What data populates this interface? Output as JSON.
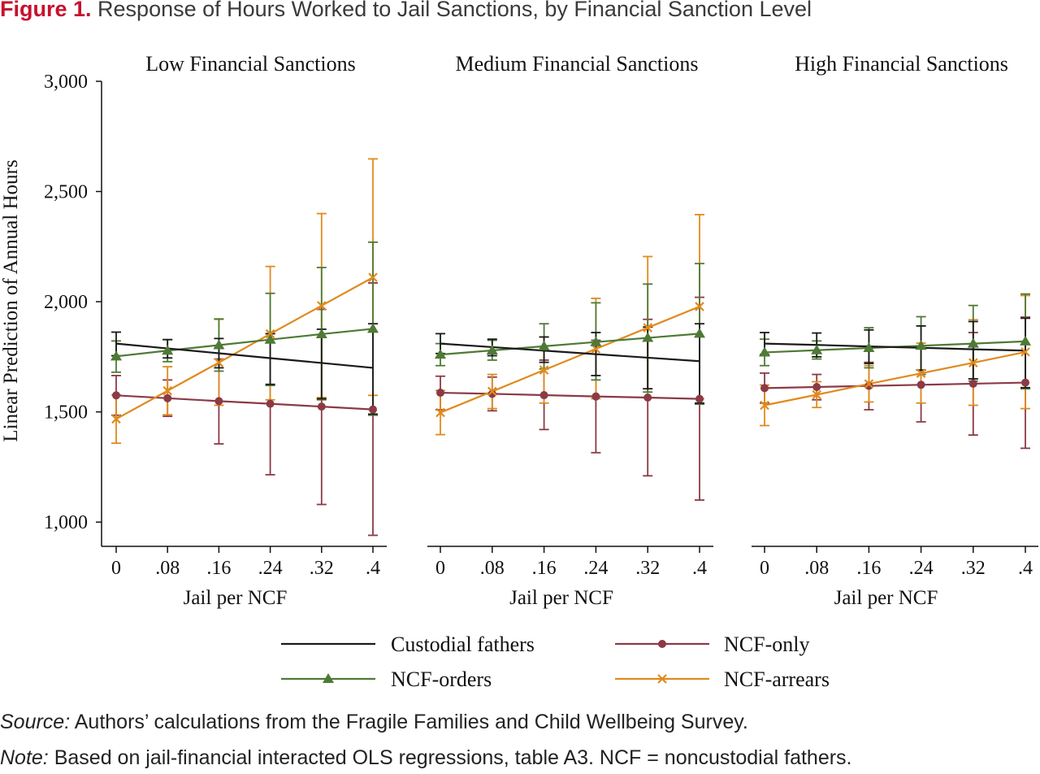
{
  "figure": {
    "label": "Figure 1.",
    "title": "Response of Hours Worked to Jail Sanctions, by Financial Sanction Level"
  },
  "source": {
    "label": "Source:",
    "text": "Authors’ calculations from the Fragile Families and Child Wellbeing Survey."
  },
  "note": {
    "label": "Note:",
    "text": "Based on jail-financial interacted OLS regressions, table A3. NCF = noncustodial fathers."
  },
  "chart_data": {
    "type": "line",
    "ylabel": "Linear Prediction of Annual Hours",
    "xlabel": "Jail per NCF",
    "x": [
      0,
      0.08,
      0.16,
      0.24,
      0.32,
      0.4
    ],
    "x_tick_labels": [
      "0",
      ".08",
      ".16",
      ".24",
      ".32",
      ".4"
    ],
    "y_ticks": [
      1000,
      1500,
      2000,
      2500,
      3000
    ],
    "y_tick_labels": [
      "1,000",
      "1,500",
      "2,000",
      "2,500",
      "3,000"
    ],
    "ylim": [
      890,
      3000
    ],
    "grid": false,
    "legend_position": "bottom",
    "colors": {
      "Custodial fathers": "#1a1a1a",
      "NCF-only": "#8b3a46",
      "NCF-orders": "#4f7a35",
      "NCF-arrears": "#e08a1e"
    },
    "series_order": [
      "Custodial fathers",
      "NCF-only",
      "NCF-orders",
      "NCF-arrears"
    ],
    "markers": {
      "Custodial fathers": "none",
      "NCF-only": "circle",
      "NCF-orders": "triangle",
      "NCF-arrears": "x"
    },
    "panels": [
      {
        "title": "Low Financial Sanctions",
        "series": [
          {
            "name": "Custodial fathers",
            "values": [
              1810,
              1788,
              1766,
              1744,
              1722,
              1700
            ],
            "lo": [
              1755,
              1745,
              1700,
              1625,
              1560,
              1490
            ],
            "hi": [
              1862,
              1828,
              1833,
              1855,
              1875,
              1900
            ]
          },
          {
            "name": "NCF-only",
            "values": [
              1575,
              1562,
              1549,
              1537,
              1524,
              1511
            ],
            "lo": [
              1485,
              1480,
              1355,
              1215,
              1080,
              940
            ],
            "hi": [
              1665,
              1645,
              1740,
              1855,
              1965,
              2085
            ]
          },
          {
            "name": "NCF-orders",
            "values": [
              1752,
              1778,
              1803,
              1828,
              1853,
              1877
            ],
            "lo": [
              1680,
              1728,
              1685,
              1620,
              1555,
              1485
            ],
            "hi": [
              1822,
              1828,
              1922,
              2038,
              2155,
              2270
            ]
          },
          {
            "name": "NCF-arrears",
            "values": [
              1468,
              1596,
              1724,
              1854,
              1982,
              2110
            ],
            "lo": [
              1358,
              1487,
              1530,
              1555,
              1565,
              1575
            ],
            "hi": [
              1577,
              1705,
              1920,
              2160,
              2400,
              2648
            ]
          }
        ]
      },
      {
        "title": "Medium Financial Sanctions",
        "series": [
          {
            "name": "Custodial fathers",
            "values": [
              1810,
              1794,
              1778,
              1762,
              1746,
              1730
            ],
            "lo": [
              1765,
              1755,
              1725,
              1665,
              1605,
              1540
            ],
            "hi": [
              1855,
              1830,
              1840,
              1860,
              1885,
              1900
            ]
          },
          {
            "name": "NCF-only",
            "values": [
              1587,
              1582,
              1576,
              1570,
              1565,
              1559
            ],
            "lo": [
              1510,
              1505,
              1420,
              1315,
              1210,
              1100
            ],
            "hi": [
              1662,
              1658,
              1735,
              1825,
              1920,
              2020
            ]
          },
          {
            "name": "NCF-orders",
            "values": [
              1760,
              1779,
              1798,
              1817,
              1836,
              1855
            ],
            "lo": [
              1710,
              1735,
              1695,
              1645,
              1590,
              1535
            ],
            "hi": [
              1810,
              1825,
              1900,
              1995,
              2080,
              2173
            ]
          },
          {
            "name": "NCF-arrears",
            "values": [
              1497,
              1593,
              1690,
              1786,
              1882,
              1978
            ],
            "lo": [
              1397,
              1515,
              1540,
              1560,
              1565,
              1560
            ],
            "hi": [
              1597,
              1670,
              1840,
              2015,
              2205,
              2395
            ]
          }
        ]
      },
      {
        "title": "High Financial Sanctions",
        "series": [
          {
            "name": "Custodial fathers",
            "values": [
              1810,
              1804,
              1797,
              1791,
              1784,
              1778
            ],
            "lo": [
              1760,
              1750,
              1720,
              1690,
              1650,
              1610
            ],
            "hi": [
              1860,
              1858,
              1872,
              1890,
              1910,
              1925
            ]
          },
          {
            "name": "NCF-only",
            "values": [
              1608,
              1613,
              1618,
              1623,
              1628,
              1633
            ],
            "lo": [
              1540,
              1555,
              1510,
              1455,
              1395,
              1335
            ],
            "hi": [
              1676,
              1670,
              1725,
              1790,
              1860,
              1930
            ]
          },
          {
            "name": "NCF-orders",
            "values": [
              1770,
              1780,
              1790,
              1800,
              1810,
              1820
            ],
            "lo": [
              1710,
              1740,
              1700,
              1670,
              1640,
              1605
            ],
            "hi": [
              1830,
              1822,
              1882,
              1932,
              1983,
              2035
            ]
          },
          {
            "name": "NCF-arrears",
            "values": [
              1530,
              1578,
              1627,
              1675,
              1723,
              1772
            ],
            "lo": [
              1438,
              1520,
              1545,
              1540,
              1530,
              1515
            ],
            "hi": [
              1622,
              1637,
              1710,
              1812,
              1918,
              2028
            ]
          }
        ]
      }
    ]
  }
}
